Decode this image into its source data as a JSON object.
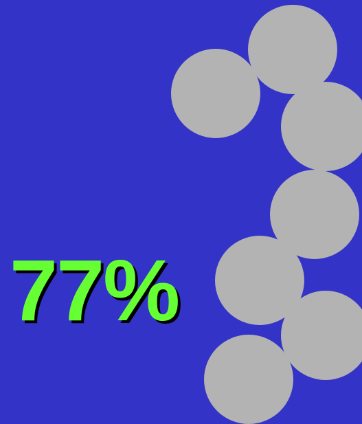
{
  "colors": {
    "background": "#3333c8",
    "circle": "#b3b3b3",
    "stat_text": "#66ff33"
  },
  "stat": {
    "value": "77%"
  }
}
